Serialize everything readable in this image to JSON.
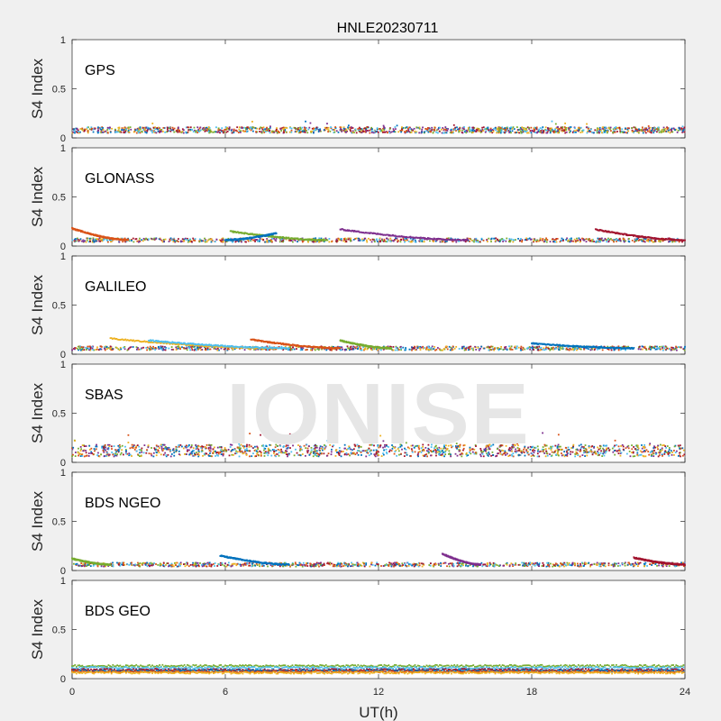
{
  "chart_data": {
    "type": "scatter",
    "title": "HNLE20230711",
    "xlabel": "UT(h)",
    "ylabel": "S4 Index",
    "xlim": [
      0,
      24
    ],
    "ylim": [
      0,
      1
    ],
    "x_ticks": [
      "0",
      "6",
      "12",
      "18",
      "24"
    ],
    "y_ticks": [
      "0",
      "0.5",
      "1"
    ],
    "grid": false,
    "series_colors": [
      "#0072BD",
      "#D95319",
      "#EDB120",
      "#7E2F8E",
      "#77AC30",
      "#4DBEEE",
      "#A2142F"
    ],
    "watermark": "IONISE",
    "panels": [
      {
        "label": "GPS",
        "pattern": "noisy",
        "level": 0.08,
        "spread": 0.03
      },
      {
        "label": "GLONASS",
        "pattern": "arcs",
        "level": 0.06,
        "spread": 0.02,
        "arcs": [
          [
            0,
            2.2,
            0.18
          ],
          [
            6.2,
            10,
            0.15
          ],
          [
            8,
            6,
            0.13
          ],
          [
            10.5,
            15.5,
            0.17
          ],
          [
            20.5,
            24,
            0.17
          ]
        ]
      },
      {
        "label": "GALILEO",
        "pattern": "arcs",
        "level": 0.06,
        "spread": 0.02,
        "arcs": [
          [
            1.5,
            7.8,
            0.16
          ],
          [
            3,
            8.5,
            0.14
          ],
          [
            7,
            10.5,
            0.15
          ],
          [
            10.5,
            12.5,
            0.14
          ],
          [
            18,
            22,
            0.11
          ]
        ]
      },
      {
        "label": "SBAS",
        "pattern": "noisy",
        "level": 0.12,
        "spread": 0.06
      },
      {
        "label": "BDS NGEO",
        "pattern": "arcs",
        "level": 0.06,
        "spread": 0.02,
        "arcs": [
          [
            0,
            1.5,
            0.12
          ],
          [
            5.8,
            8.5,
            0.15
          ],
          [
            14.5,
            16,
            0.17
          ],
          [
            22,
            24,
            0.13
          ]
        ]
      },
      {
        "label": "BDS GEO",
        "pattern": "bands",
        "level": 0.1,
        "spread": 0.01,
        "bands": [
          0.13,
          0.11,
          0.09,
          0.08,
          0.07,
          0.06
        ]
      }
    ]
  }
}
